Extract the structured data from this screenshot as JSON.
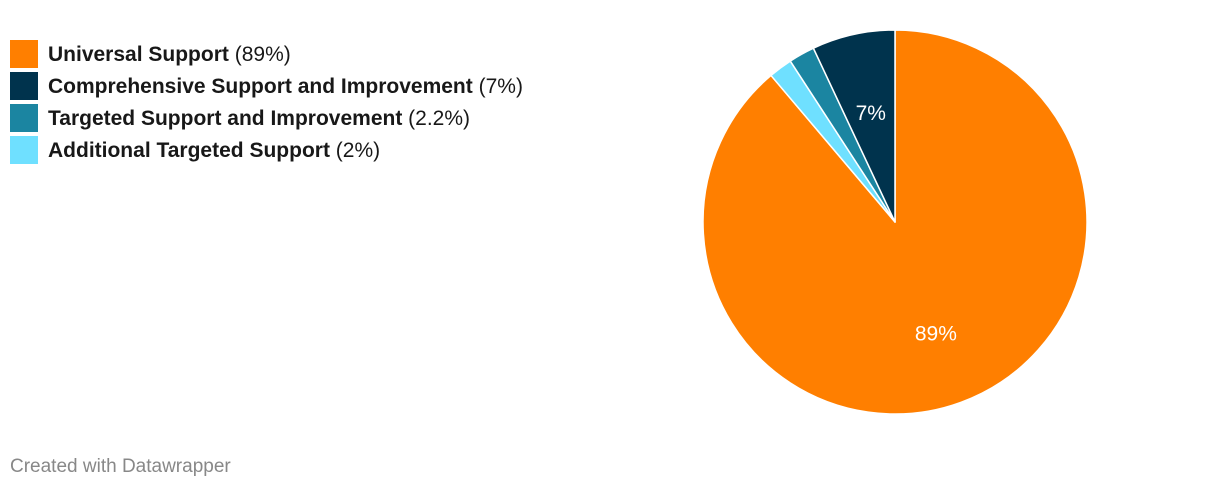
{
  "chart_data": {
    "type": "pie",
    "slices": [
      {
        "name": "Universal Support",
        "value": 89,
        "display": "89%",
        "legend_pct": "(89%)",
        "color": "#ff7f00",
        "label": "89%"
      },
      {
        "name": "Comprehensive Support and Improvement",
        "value": 7,
        "display": "7%",
        "legend_pct": "(7%)",
        "color": "#00334d",
        "label": "7%"
      },
      {
        "name": "Targeted Support and Improvement",
        "value": 2.2,
        "display": "2.2%",
        "legend_pct": "(2.2%)",
        "color": "#1b85a1",
        "label": ""
      },
      {
        "name": "Additional Targeted Support",
        "value": 2,
        "display": "2%",
        "legend_pct": "(2%)",
        "color": "#6fe0ff",
        "label": ""
      }
    ],
    "legend_placement": "top-left"
  },
  "footer": {
    "credit": "Created with Datawrapper"
  }
}
